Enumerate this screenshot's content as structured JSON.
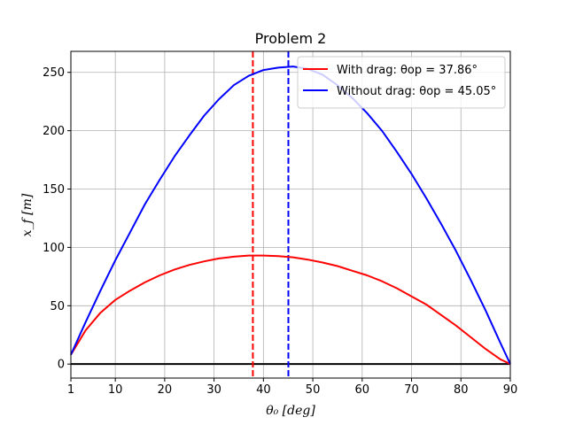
{
  "chart_data": {
    "type": "line",
    "title": "Problem 2",
    "xlabel": "θ₀ [deg]",
    "ylabel": "x_f [m]",
    "xlim": [
      1,
      90
    ],
    "ylim": [
      -12,
      268
    ],
    "xticks": [
      1,
      10,
      20,
      30,
      40,
      50,
      60,
      70,
      80,
      90
    ],
    "yticks": [
      0,
      50,
      100,
      150,
      200,
      250
    ],
    "grid": true,
    "legend_position": "top-right",
    "series": [
      {
        "name": "With drag: θop = 37.86°",
        "color": "#ff0000",
        "x": [
          1,
          4,
          7,
          10,
          13,
          16,
          19,
          22,
          25,
          28,
          31,
          34,
          37,
          40,
          43,
          46,
          49,
          52,
          55,
          58,
          61,
          64,
          67,
          70,
          73,
          76,
          79,
          82,
          85,
          88,
          90
        ],
        "y": [
          8,
          29,
          44,
          55,
          63,
          70,
          76,
          81,
          85,
          88,
          90.5,
          92,
          93,
          93,
          92.5,
          91.5,
          89.5,
          87,
          84,
          80,
          76,
          71,
          65,
          58,
          51,
          42,
          33,
          23,
          13,
          4,
          0
        ]
      },
      {
        "name": "Without drag: θop = 45.05°",
        "color": "#0000ff",
        "x": [
          1,
          4,
          7,
          10,
          13,
          16,
          19,
          22,
          25,
          28,
          31,
          34,
          37,
          40,
          43,
          46,
          49,
          52,
          55,
          58,
          61,
          64,
          67,
          70,
          73,
          76,
          79,
          82,
          85,
          88,
          90
        ],
        "y": [
          8,
          36,
          63,
          89,
          113,
          137,
          158,
          178,
          196,
          213,
          227,
          239,
          247,
          252,
          254,
          255,
          253,
          248,
          239,
          228,
          215,
          200,
          182,
          163,
          142,
          120,
          97,
          72,
          46,
          18,
          0
        ]
      }
    ],
    "vlines": [
      {
        "x": 37.86,
        "color": "#ff0000",
        "style": "dashed"
      },
      {
        "x": 45.05,
        "color": "#0000ff",
        "style": "dashed"
      }
    ],
    "hlines": [
      {
        "y": 0,
        "color": "#000000",
        "style": "solid"
      }
    ]
  }
}
